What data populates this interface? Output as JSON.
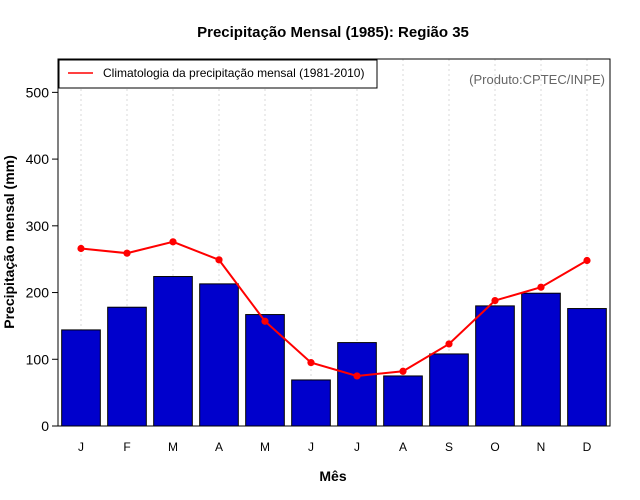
{
  "chart_data": {
    "type": "bar",
    "title": "Precipitação Mensal (1985): Região 35",
    "xlabel": "Mês",
    "ylabel": "Precipitação mensal (mm)",
    "categories": [
      "J",
      "F",
      "M",
      "A",
      "M",
      "J",
      "J",
      "A",
      "S",
      "O",
      "N",
      "D"
    ],
    "series": [
      {
        "name": "Precipitação mensal (1985)",
        "type": "bar",
        "color": "#0000CC",
        "values": [
          144,
          178,
          224,
          213,
          167,
          69,
          125,
          75,
          108,
          180,
          199,
          176
        ]
      },
      {
        "name": "Climatologia da precipitação mensal (1981-2010)",
        "type": "line",
        "color": "#FF0000",
        "values": [
          266,
          259,
          276,
          249,
          157,
          95,
          75,
          82,
          123,
          188,
          208,
          248
        ]
      }
    ],
    "ylim": [
      0,
      550
    ],
    "yticks": [
      0,
      100,
      200,
      300,
      400,
      500
    ],
    "grid": "vertical-dotted",
    "legend": {
      "position": "top-left",
      "entries": [
        "Climatologia da precipitação mensal (1981-2010)"
      ]
    },
    "annotation": "(Produto:CPTEC/INPE)"
  }
}
